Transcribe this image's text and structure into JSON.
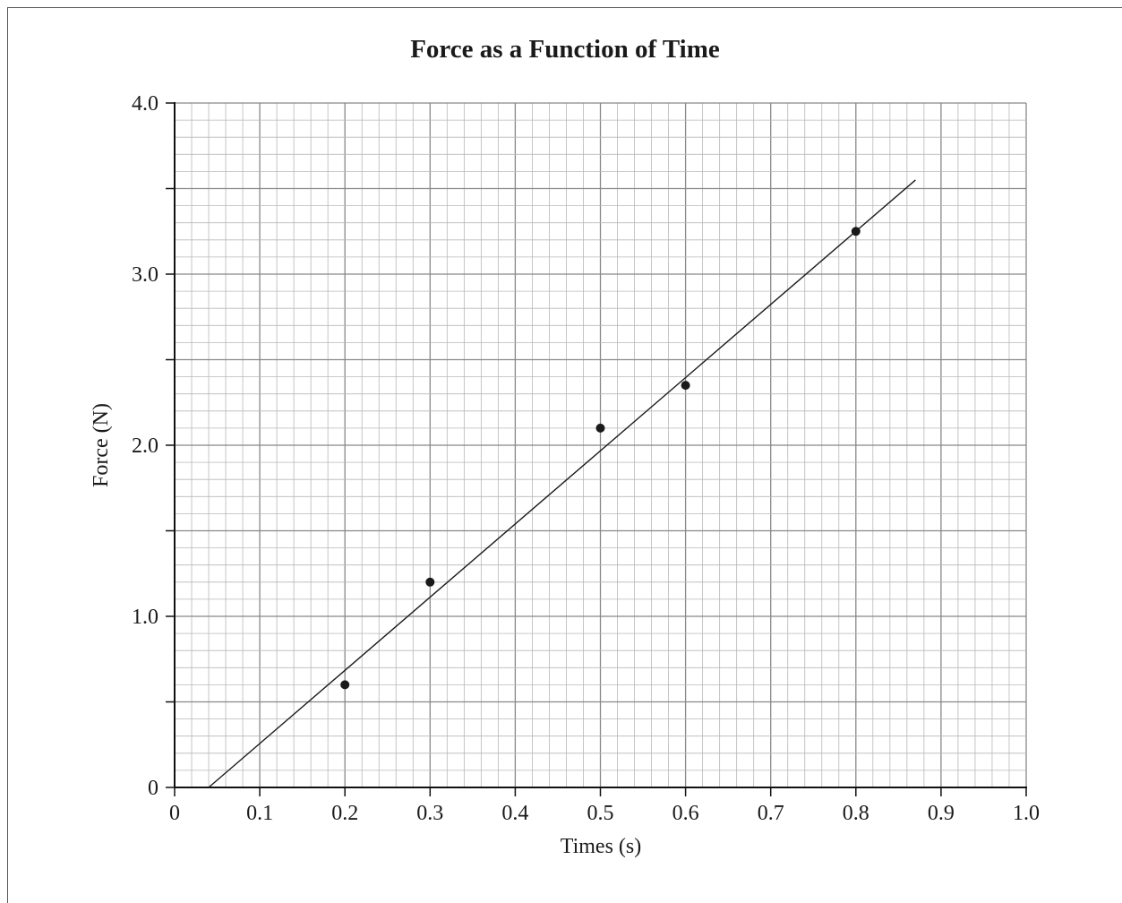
{
  "chart_data": {
    "type": "scatter",
    "title": "Force as a Function of Time",
    "xlabel": "Times (s)",
    "ylabel": "Force (N)",
    "xlim": [
      0,
      1.0
    ],
    "ylim": [
      0,
      4.0
    ],
    "x_ticks": [
      0,
      0.1,
      0.2,
      0.3,
      0.4,
      0.5,
      0.6,
      0.7,
      0.8,
      0.9,
      1.0
    ],
    "x_tick_labels": [
      "0",
      "0.1",
      "0.2",
      "0.3",
      "0.4",
      "0.5",
      "0.6",
      "0.7",
      "0.8",
      "0.9",
      "1.0"
    ],
    "y_ticks": [
      0,
      1.0,
      2.0,
      3.0,
      4.0
    ],
    "y_tick_labels": [
      "0",
      "1.0",
      "2.0",
      "3.0",
      "4.0"
    ],
    "grid": "on",
    "points": [
      {
        "x": 0.2,
        "y": 0.6
      },
      {
        "x": 0.3,
        "y": 1.2
      },
      {
        "x": 0.5,
        "y": 2.1
      },
      {
        "x": 0.6,
        "y": 2.35
      },
      {
        "x": 0.8,
        "y": 3.25
      }
    ],
    "best_fit_line": {
      "x": [
        0.04,
        0.87
      ],
      "y": [
        0.0,
        3.55
      ]
    },
    "colors": {
      "grid_minor": "#b8b8b8",
      "grid_major": "#888888",
      "points": "#1a1a1a",
      "line": "#1a1a1a"
    }
  }
}
